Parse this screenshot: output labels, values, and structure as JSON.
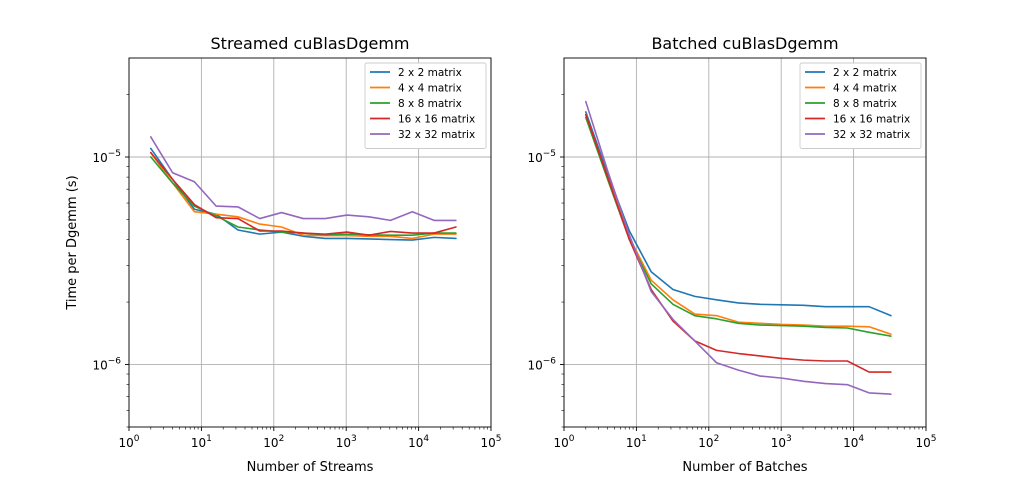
{
  "chart_data": [
    {
      "type": "line",
      "title": "Streamed cuBlasDgemm",
      "xlabel": "Number of Streams",
      "ylabel": "Time per Dgemm (s)",
      "xscale": "log",
      "yscale": "log",
      "xlim": [
        1,
        100000
      ],
      "ylim": [
        5e-07,
        3e-05
      ],
      "grid": true,
      "legend_position": "top-right",
      "x_ticks": [
        {
          "base": "10",
          "exp": "0"
        },
        {
          "base": "10",
          "exp": "1"
        },
        {
          "base": "10",
          "exp": "2"
        },
        {
          "base": "10",
          "exp": "3"
        },
        {
          "base": "10",
          "exp": "4"
        },
        {
          "base": "10",
          "exp": "5"
        }
      ],
      "y_ticks": [
        {
          "base": "10",
          "exp": "−6"
        },
        {
          "base": "10",
          "exp": "−5"
        }
      ],
      "x": [
        2,
        4,
        8,
        16,
        32,
        64,
        128,
        256,
        512,
        1024,
        2048,
        4096,
        8192,
        16384,
        32768
      ],
      "series": [
        {
          "name": "2 x 2 matrix",
          "color": "#1f77b4",
          "values": [
            1.1e-05,
            7.8e-06,
            5.6e-06,
            5.3e-06,
            4.45e-06,
            4.25e-06,
            4.35e-06,
            4.15e-06,
            4.05e-06,
            4.05e-06,
            4.03e-06,
            4e-06,
            3.98e-06,
            4.1e-06,
            4.05e-06
          ]
        },
        {
          "name": "4 x 4 matrix",
          "color": "#ff7f0e",
          "values": [
            1.05e-05,
            7.5e-06,
            5.45e-06,
            5.3e-06,
            5.15e-06,
            4.75e-06,
            4.6e-06,
            4.2e-06,
            4.18e-06,
            4.18e-06,
            4.15e-06,
            4.15e-06,
            4.05e-06,
            4.25e-06,
            4.25e-06
          ]
        },
        {
          "name": "8 x 8 matrix",
          "color": "#2ca02c",
          "values": [
            1e-05,
            7.5e-06,
            5.8e-06,
            5.2e-06,
            4.6e-06,
            4.45e-06,
            4.35e-06,
            4.3e-06,
            4.22e-06,
            4.25e-06,
            4.22e-06,
            4.2e-06,
            4.2e-06,
            4.3e-06,
            4.3e-06
          ]
        },
        {
          "name": "16 x 16 matrix",
          "color": "#d62728",
          "values": [
            1.05e-05,
            7.8e-06,
            5.9e-06,
            5.1e-06,
            5.05e-06,
            4.4e-06,
            4.4e-06,
            4.3e-06,
            4.25e-06,
            4.35e-06,
            4.2e-06,
            4.38e-06,
            4.3e-06,
            4.3e-06,
            4.6e-06
          ]
        },
        {
          "name": "32 x 32 matrix",
          "color": "#9467bd",
          "values": [
            1.25e-05,
            8.4e-06,
            7.6e-06,
            5.8e-06,
            5.75e-06,
            5.05e-06,
            5.4e-06,
            5.05e-06,
            5.05e-06,
            5.25e-06,
            5.15e-06,
            4.95e-06,
            5.45e-06,
            4.95e-06,
            4.95e-06
          ]
        }
      ]
    },
    {
      "type": "line",
      "title": "Batched cuBlasDgemm",
      "xlabel": "Number of Batches",
      "ylabel": "",
      "xscale": "log",
      "yscale": "log",
      "xlim": [
        1,
        100000
      ],
      "ylim": [
        5e-07,
        3e-05
      ],
      "grid": true,
      "legend_position": "top-right",
      "x_ticks": [
        {
          "base": "10",
          "exp": "0"
        },
        {
          "base": "10",
          "exp": "1"
        },
        {
          "base": "10",
          "exp": "2"
        },
        {
          "base": "10",
          "exp": "3"
        },
        {
          "base": "10",
          "exp": "4"
        },
        {
          "base": "10",
          "exp": "5"
        }
      ],
      "y_ticks": [
        {
          "base": "10",
          "exp": "−6"
        },
        {
          "base": "10",
          "exp": "−5"
        }
      ],
      "x": [
        2,
        4,
        8,
        16,
        32,
        64,
        128,
        256,
        512,
        1024,
        2048,
        4096,
        8192,
        16384,
        32768
      ],
      "series": [
        {
          "name": "2 x 2 matrix",
          "color": "#1f77b4",
          "values": [
            1.65e-05,
            8.3e-06,
            4.4e-06,
            2.8e-06,
            2.3e-06,
            2.13e-06,
            2.05e-06,
            1.98e-06,
            1.95e-06,
            1.94e-06,
            1.93e-06,
            1.9e-06,
            1.9e-06,
            1.9e-06,
            1.72e-06
          ]
        },
        {
          "name": "4 x 4 matrix",
          "color": "#ff7f0e",
          "values": [
            1.6e-05,
            8e-06,
            4.1e-06,
            2.55e-06,
            2.05e-06,
            1.75e-06,
            1.72e-06,
            1.6e-06,
            1.58e-06,
            1.56e-06,
            1.55e-06,
            1.53e-06,
            1.53e-06,
            1.52e-06,
            1.4e-06
          ]
        },
        {
          "name": "8 x 8 matrix",
          "color": "#2ca02c",
          "values": [
            1.55e-05,
            7.8e-06,
            4e-06,
            2.45e-06,
            1.95e-06,
            1.72e-06,
            1.66e-06,
            1.58e-06,
            1.55e-06,
            1.54e-06,
            1.53e-06,
            1.51e-06,
            1.5e-06,
            1.43e-06,
            1.37e-06
          ]
        },
        {
          "name": "16 x 16 matrix",
          "color": "#d62728",
          "values": [
            1.6e-05,
            8e-06,
            4e-06,
            2.3e-06,
            1.62e-06,
            1.3e-06,
            1.17e-06,
            1.13e-06,
            1.1e-06,
            1.07e-06,
            1.05e-06,
            1.04e-06,
            1.04e-06,
            9.2e-07,
            9.2e-07
          ]
        },
        {
          "name": "32 x 32 matrix",
          "color": "#9467bd",
          "values": [
            1.85e-05,
            8.6e-06,
            4.2e-06,
            2.25e-06,
            1.65e-06,
            1.3e-06,
            1.02e-06,
            9.4e-07,
            8.8e-07,
            8.6e-07,
            8.3e-07,
            8.1e-07,
            8e-07,
            7.3e-07,
            7.2e-07
          ]
        }
      ]
    }
  ]
}
